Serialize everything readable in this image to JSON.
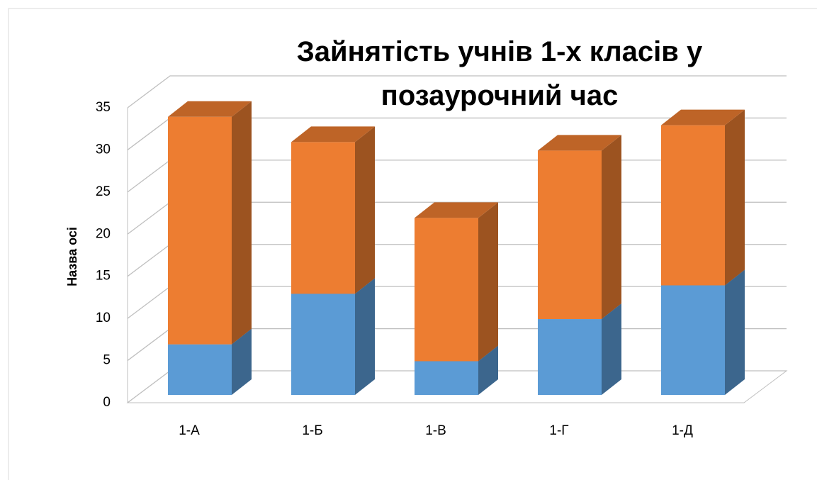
{
  "chart_data": {
    "type": "bar3d_stacked",
    "title": "Зайнятість учнів 1-х класів у позаурочний час",
    "y_label": "Назва осі",
    "categories": [
      "1-А",
      "1-Б",
      "1-В",
      "1-Г",
      "1-Д"
    ],
    "series": [
      {
        "color": "#5b9bd5",
        "values": [
          6,
          12,
          4,
          9,
          13
        ]
      },
      {
        "color": "#ed7d31",
        "values": [
          27,
          18,
          17,
          20,
          19
        ]
      }
    ],
    "ylim": [
      0,
      35
    ],
    "yticks": [
      0,
      5,
      10,
      15,
      20,
      25,
      30,
      35
    ],
    "grid": true
  }
}
